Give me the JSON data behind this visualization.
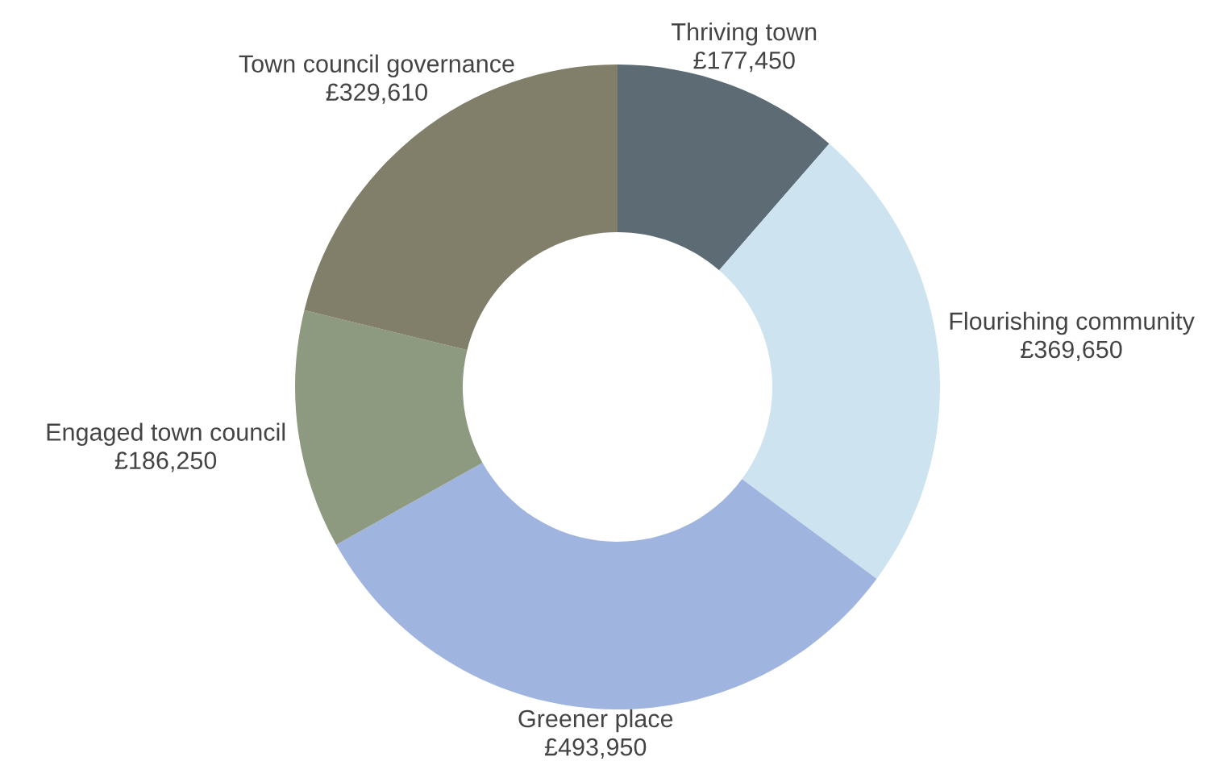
{
  "chart_data": {
    "type": "donut",
    "categories": [
      "Thriving town",
      "Flourishing community",
      "Greener place",
      "Engaged town council",
      "Town council governance"
    ],
    "values": [
      177450,
      369650,
      493950,
      186250,
      329610
    ],
    "value_labels": [
      "£177,450",
      "£369,650",
      "£493,950",
      "£186,250",
      "£329,610"
    ],
    "colors": [
      "#5d6b75",
      "#cde3ef",
      "#9fb4de",
      "#8e9a80",
      "#817e6a"
    ]
  }
}
